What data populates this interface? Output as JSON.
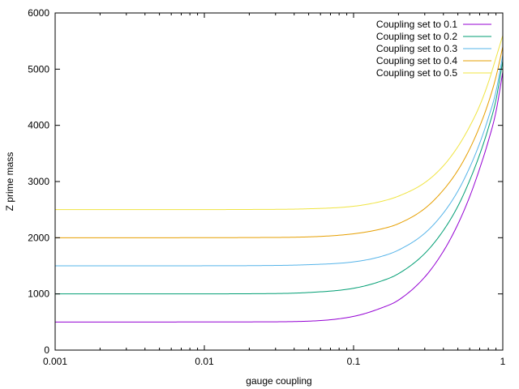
{
  "chart_data": {
    "type": "line",
    "xlabel": "gauge coupling",
    "ylabel": "Z prime mass",
    "xscale": "log",
    "xlim": [
      0.001,
      1
    ],
    "ylim": [
      0,
      6000
    ],
    "xticks": [
      0.001,
      0.01,
      0.1,
      1
    ],
    "xtick_labels": [
      "0.001",
      "0.01",
      "0.1",
      "1"
    ],
    "yticks": [
      0,
      1000,
      2000,
      3000,
      4000,
      5000,
      6000
    ],
    "ytick_labels": [
      "0",
      "1000",
      "2000",
      "3000",
      "4000",
      "5000",
      "6000"
    ],
    "grid": false,
    "legend_position": "top-right",
    "x": [
      0.001,
      0.002,
      0.005,
      0.01,
      0.02,
      0.05,
      0.1,
      0.15,
      0.2,
      0.3,
      0.4,
      0.5,
      0.6,
      0.7,
      0.8,
      0.9,
      1.0
    ],
    "series": [
      {
        "name": "Coupling set to 0.1",
        "color": "#9400d3",
        "values": [
          500,
          500,
          500,
          501,
          502,
          515,
          600,
          740,
          890,
          1300,
          1760,
          2240,
          2730,
          3230,
          3720,
          4240,
          4950
        ]
      },
      {
        "name": "Coupling set to 0.2",
        "color": "#009e73",
        "values": [
          1000,
          1000,
          1000,
          1001,
          1003,
          1025,
          1100,
          1220,
          1360,
          1720,
          2130,
          2560,
          3020,
          3480,
          3950,
          4450,
          5150
        ]
      },
      {
        "name": "Coupling set to 0.3",
        "color": "#56b4e9",
        "values": [
          1500,
          1500,
          1500,
          1501,
          1503,
          1520,
          1570,
          1660,
          1780,
          2080,
          2440,
          2830,
          3250,
          3680,
          4130,
          4600,
          5250
        ]
      },
      {
        "name": "Coupling set to 0.4",
        "color": "#e69f00",
        "values": [
          2000,
          2000,
          2000,
          2001,
          2003,
          2015,
          2070,
          2150,
          2250,
          2520,
          2850,
          3200,
          3580,
          3980,
          4400,
          4860,
          5400
        ]
      },
      {
        "name": "Coupling set to 0.5",
        "color": "#f0e442",
        "values": [
          2500,
          2500,
          2500,
          2501,
          2503,
          2515,
          2560,
          2640,
          2740,
          2980,
          3280,
          3620,
          3980,
          4350,
          4760,
          5200,
          5600
        ]
      }
    ]
  }
}
